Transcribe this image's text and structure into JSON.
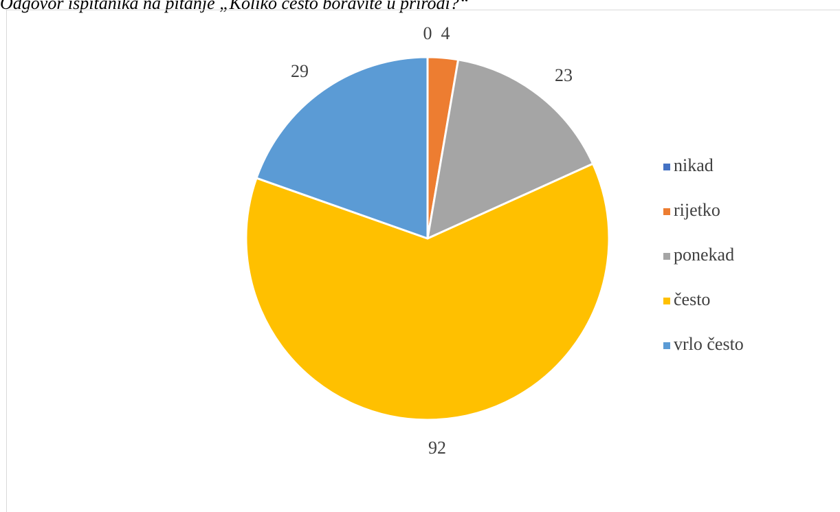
{
  "caption": "Odgovor ispitanika na pitanje „Koliko često boravite u prirodi?“",
  "chart_data": {
    "type": "pie",
    "categories": [
      "nikad",
      "rijetko",
      "ponekad",
      "često",
      "vrlo često"
    ],
    "values": [
      0,
      4,
      23,
      92,
      29
    ],
    "colors": [
      "#4472c4",
      "#ed7d31",
      "#a5a5a5",
      "#ffc000",
      "#5b9bd5"
    ],
    "legend_position": "right",
    "data_labels": [
      "0",
      "4",
      "23",
      "92",
      "29"
    ]
  }
}
